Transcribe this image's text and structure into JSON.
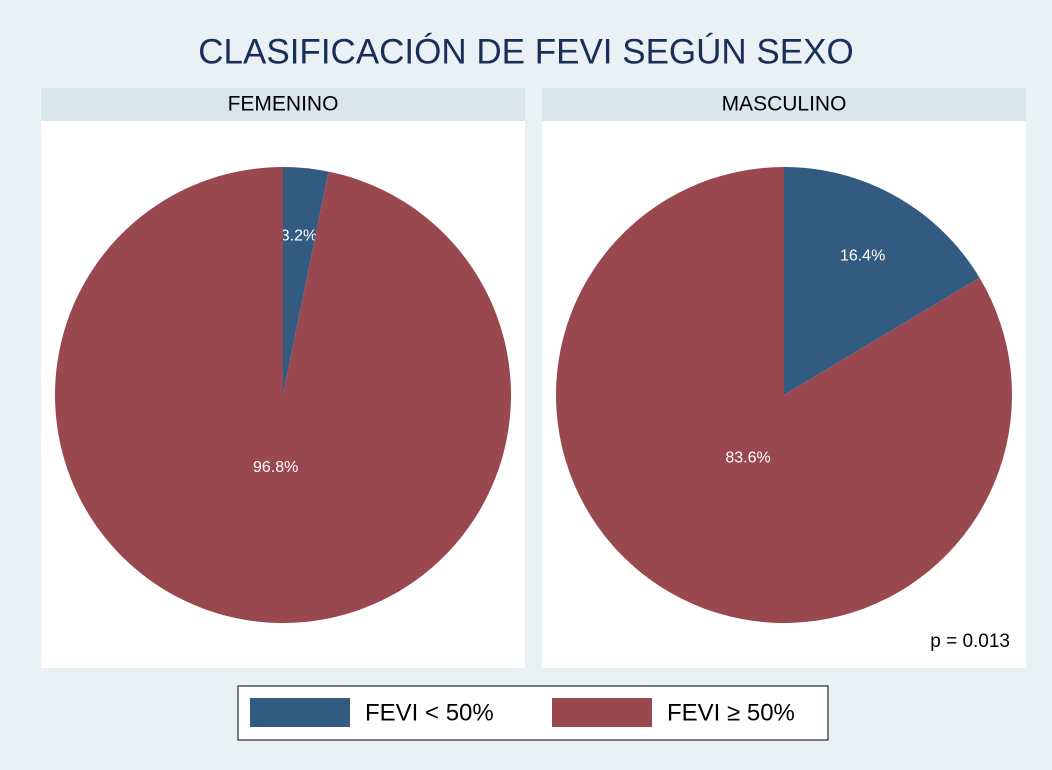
{
  "title": "CLASIFICACIÓN DE FEVI SEGÚN SEXO",
  "chart_data": [
    {
      "type": "pie",
      "title": "FEMENINO",
      "categories": [
        "FEVI < 50%",
        "FEVI ≥ 50%"
      ],
      "values": [
        3.2,
        96.8
      ],
      "value_labels": [
        "3.2%",
        "96.8%"
      ],
      "colors": [
        "#335a80",
        "#9a4850"
      ]
    },
    {
      "type": "pie",
      "title": "MASCULINO",
      "categories": [
        "FEVI < 50%",
        "FEVI ≥ 50%"
      ],
      "values": [
        16.4,
        83.6
      ],
      "value_labels": [
        "16.4%",
        "83.6%"
      ],
      "colors": [
        "#335a80",
        "#9a4850"
      ],
      "annotation": "p = 0.013"
    }
  ]
}
